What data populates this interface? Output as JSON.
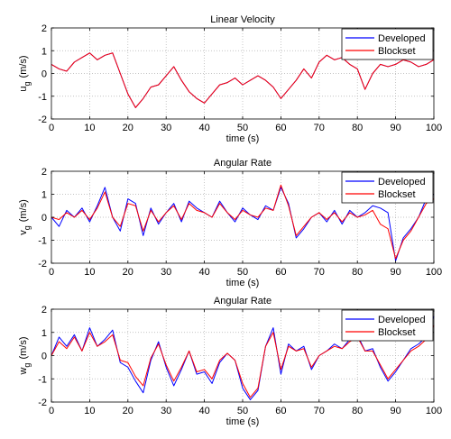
{
  "chart_data": [
    {
      "type": "line",
      "title": "Linear Velocity",
      "xlabel": "time (s)",
      "ylabel_main": "u",
      "ylabel_sub": "g",
      "ylabel_unit": "(m/s)",
      "xlim": [
        0,
        100
      ],
      "ylim": [
        -2,
        2
      ],
      "xticks": [
        0,
        10,
        20,
        30,
        40,
        50,
        60,
        70,
        80,
        90,
        100
      ],
      "yticks": [
        -2,
        -1,
        0,
        1,
        2
      ],
      "grid": true,
      "legend": "top-right",
      "series": [
        {
          "name": "Developed",
          "color": "#0000ff",
          "x": [
            0,
            2,
            4,
            6,
            8,
            10,
            12,
            14,
            16,
            18,
            20,
            22,
            24,
            26,
            28,
            30,
            32,
            34,
            36,
            38,
            40,
            42,
            44,
            46,
            48,
            50,
            52,
            54,
            56,
            58,
            60,
            62,
            64,
            66,
            68,
            70,
            72,
            74,
            76,
            78,
            80,
            82,
            84,
            86,
            88,
            90,
            92,
            94,
            96,
            98,
            100
          ],
          "y": [
            0.4,
            0.2,
            0.1,
            0.5,
            0.7,
            0.9,
            0.6,
            0.8,
            0.9,
            0.0,
            -0.9,
            -1.5,
            -1.1,
            -0.6,
            -0.5,
            -0.1,
            0.3,
            -0.3,
            -0.8,
            -1.1,
            -1.3,
            -0.9,
            -0.5,
            -0.4,
            -0.2,
            -0.5,
            -0.3,
            -0.1,
            -0.3,
            -0.6,
            -1.1,
            -0.7,
            -0.3,
            0.2,
            -0.2,
            0.5,
            0.8,
            0.6,
            0.7,
            0.4,
            0.2,
            -0.7,
            0.0,
            0.4,
            0.3,
            0.4,
            0.6,
            0.5,
            0.3,
            0.4,
            0.6
          ]
        },
        {
          "name": "Blockset",
          "color": "#ff0000",
          "x": [
            0,
            2,
            4,
            6,
            8,
            10,
            12,
            14,
            16,
            18,
            20,
            22,
            24,
            26,
            28,
            30,
            32,
            34,
            36,
            38,
            40,
            42,
            44,
            46,
            48,
            50,
            52,
            54,
            56,
            58,
            60,
            62,
            64,
            66,
            68,
            70,
            72,
            74,
            76,
            78,
            80,
            82,
            84,
            86,
            88,
            90,
            92,
            94,
            96,
            98,
            100
          ],
          "y": [
            0.4,
            0.2,
            0.1,
            0.5,
            0.7,
            0.9,
            0.6,
            0.8,
            0.9,
            0.0,
            -0.9,
            -1.5,
            -1.1,
            -0.6,
            -0.5,
            -0.1,
            0.3,
            -0.3,
            -0.8,
            -1.1,
            -1.3,
            -0.9,
            -0.5,
            -0.4,
            -0.2,
            -0.5,
            -0.3,
            -0.1,
            -0.3,
            -0.6,
            -1.1,
            -0.7,
            -0.3,
            0.2,
            -0.2,
            0.5,
            0.8,
            0.6,
            0.7,
            0.4,
            0.2,
            -0.7,
            0.0,
            0.4,
            0.3,
            0.4,
            0.6,
            0.5,
            0.3,
            0.4,
            0.6
          ]
        }
      ]
    },
    {
      "type": "line",
      "title": "Angular Rate",
      "xlabel": "time (s)",
      "ylabel_main": "v",
      "ylabel_sub": "g",
      "ylabel_unit": "(m/s)",
      "xlim": [
        0,
        100
      ],
      "ylim": [
        -2,
        2
      ],
      "xticks": [
        0,
        10,
        20,
        30,
        40,
        50,
        60,
        70,
        80,
        90,
        100
      ],
      "yticks": [
        -2,
        -1,
        0,
        1,
        2
      ],
      "grid": true,
      "legend": "top-right",
      "series": [
        {
          "name": "Developed",
          "color": "#0000ff",
          "x": [
            0,
            2,
            4,
            6,
            8,
            10,
            12,
            14,
            16,
            18,
            20,
            22,
            24,
            26,
            28,
            30,
            32,
            34,
            36,
            38,
            40,
            42,
            44,
            46,
            48,
            50,
            52,
            54,
            56,
            58,
            60,
            62,
            64,
            66,
            68,
            70,
            72,
            74,
            76,
            78,
            80,
            82,
            84,
            86,
            88,
            90,
            92,
            94,
            96,
            98,
            100
          ],
          "y": [
            0.0,
            -0.4,
            0.3,
            0.0,
            0.4,
            -0.2,
            0.5,
            1.3,
            0.0,
            -0.6,
            0.8,
            0.6,
            -0.8,
            0.4,
            -0.3,
            0.2,
            0.6,
            -0.2,
            0.7,
            0.4,
            0.2,
            0.0,
            0.7,
            0.2,
            -0.2,
            0.4,
            0.1,
            -0.1,
            0.5,
            0.3,
            1.3,
            0.6,
            -0.9,
            -0.5,
            0.0,
            0.2,
            -0.2,
            0.3,
            -0.3,
            0.3,
            0.0,
            0.2,
            0.5,
            0.4,
            0.2,
            -1.9,
            -0.9,
            -0.5,
            0.0,
            0.8,
            1.0
          ]
        },
        {
          "name": "Blockset",
          "color": "#ff0000",
          "x": [
            0,
            2,
            4,
            6,
            8,
            10,
            12,
            14,
            16,
            18,
            20,
            22,
            24,
            26,
            28,
            30,
            32,
            34,
            36,
            38,
            40,
            42,
            44,
            46,
            48,
            50,
            52,
            54,
            56,
            58,
            60,
            62,
            64,
            66,
            68,
            70,
            72,
            74,
            76,
            78,
            80,
            82,
            84,
            86,
            88,
            90,
            92,
            94,
            96,
            98,
            100
          ],
          "y": [
            0.0,
            -0.1,
            0.2,
            0.0,
            0.3,
            -0.1,
            0.4,
            1.1,
            0.0,
            -0.4,
            0.6,
            0.5,
            -0.6,
            0.3,
            -0.2,
            0.2,
            0.5,
            -0.1,
            0.6,
            0.3,
            0.2,
            0.0,
            0.6,
            0.2,
            -0.1,
            0.3,
            0.1,
            0.0,
            0.4,
            0.3,
            1.4,
            0.5,
            -0.8,
            -0.4,
            0.0,
            0.2,
            -0.1,
            0.2,
            -0.2,
            0.2,
            0.0,
            0.1,
            0.3,
            -0.3,
            -0.5,
            -1.8,
            -1.0,
            -0.6,
            0.0,
            0.6,
            0.8
          ]
        }
      ]
    },
    {
      "type": "line",
      "title": "Angular Rate",
      "xlabel": "time (s)",
      "ylabel_main": "w",
      "ylabel_sub": "g",
      "ylabel_unit": "(m/s)",
      "xlim": [
        0,
        100
      ],
      "ylim": [
        -2,
        2
      ],
      "xticks": [
        0,
        10,
        20,
        30,
        40,
        50,
        60,
        70,
        80,
        90,
        100
      ],
      "yticks": [
        -2,
        -1,
        0,
        1,
        2
      ],
      "grid": true,
      "legend": "top-right",
      "series": [
        {
          "name": "Developed",
          "color": "#0000ff",
          "x": [
            0,
            2,
            4,
            6,
            8,
            10,
            12,
            14,
            16,
            18,
            20,
            22,
            24,
            26,
            28,
            30,
            32,
            34,
            36,
            38,
            40,
            42,
            44,
            46,
            48,
            50,
            52,
            54,
            56,
            58,
            60,
            62,
            64,
            66,
            68,
            70,
            72,
            74,
            76,
            78,
            80,
            82,
            84,
            86,
            88,
            90,
            92,
            94,
            96,
            98,
            100
          ],
          "y": [
            0.0,
            0.8,
            0.4,
            0.9,
            0.2,
            1.2,
            0.4,
            0.7,
            1.1,
            -0.3,
            -0.5,
            -1.1,
            -1.6,
            -0.2,
            0.6,
            -0.5,
            -1.3,
            -0.6,
            0.2,
            -0.8,
            -0.7,
            -1.2,
            -0.3,
            0.1,
            -0.2,
            -1.4,
            -1.9,
            -1.5,
            0.4,
            1.2,
            -0.8,
            0.5,
            0.2,
            0.4,
            -0.6,
            0.0,
            0.2,
            0.5,
            0.3,
            0.7,
            0.9,
            0.2,
            0.3,
            -0.5,
            -1.1,
            -0.7,
            -0.2,
            0.3,
            0.5,
            0.8,
            1.7
          ]
        },
        {
          "name": "Blockset",
          "color": "#ff0000",
          "x": [
            0,
            2,
            4,
            6,
            8,
            10,
            12,
            14,
            16,
            18,
            20,
            22,
            24,
            26,
            28,
            30,
            32,
            34,
            36,
            38,
            40,
            42,
            44,
            46,
            48,
            50,
            52,
            54,
            56,
            58,
            60,
            62,
            64,
            66,
            68,
            70,
            72,
            74,
            76,
            78,
            80,
            82,
            84,
            86,
            88,
            90,
            92,
            94,
            96,
            98,
            100
          ],
          "y": [
            0.0,
            0.6,
            0.3,
            0.8,
            0.2,
            1.0,
            0.4,
            0.6,
            0.9,
            -0.2,
            -0.3,
            -0.9,
            -1.3,
            -0.1,
            0.5,
            -0.4,
            -1.1,
            -0.5,
            0.2,
            -0.7,
            -0.6,
            -1.0,
            -0.2,
            0.1,
            -0.2,
            -1.2,
            -1.8,
            -1.4,
            0.4,
            1.0,
            -0.6,
            0.4,
            0.2,
            0.3,
            -0.5,
            0.0,
            0.2,
            0.4,
            0.3,
            0.6,
            0.8,
            0.2,
            0.2,
            -0.4,
            -1.0,
            -0.6,
            -0.2,
            0.2,
            0.4,
            0.7,
            1.3
          ]
        }
      ]
    }
  ]
}
